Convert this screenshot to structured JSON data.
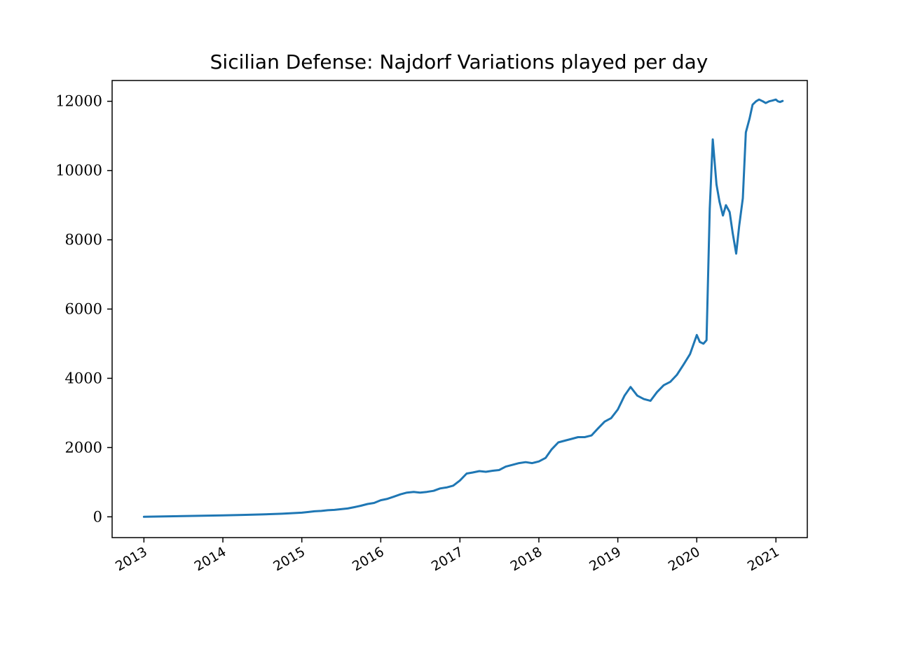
{
  "chart_data": {
    "type": "line",
    "title": "Sicilian Defense: Najdorf Variations played per day",
    "xlabel": "",
    "ylabel": "",
    "x_ticks": [
      "2013",
      "2014",
      "2015",
      "2016",
      "2017",
      "2018",
      "2019",
      "2020",
      "2021"
    ],
    "y_ticks": [
      "0",
      "2000",
      "4000",
      "6000",
      "8000",
      "10000",
      "12000"
    ],
    "xlim": [
      "2012-08-07",
      "2021-05-26"
    ],
    "ylim": [
      -600,
      12600
    ],
    "grid": false,
    "legend": "none",
    "line_color": "#1f77b4",
    "series": [
      {
        "x": [
          "2013-01-01",
          "2013-04-01",
          "2013-07-01",
          "2013-10-01",
          "2014-01-01",
          "2014-04-01",
          "2014-07-01",
          "2014-10-01",
          "2015-01-01",
          "2015-02-01",
          "2015-03-01",
          "2015-04-01",
          "2015-05-01",
          "2015-06-01",
          "2015-07-01",
          "2015-08-01",
          "2015-09-01",
          "2015-10-01",
          "2015-11-01",
          "2015-12-01",
          "2016-01-01",
          "2016-02-01",
          "2016-03-01",
          "2016-04-01",
          "2016-05-01",
          "2016-06-01",
          "2016-07-01",
          "2016-08-01",
          "2016-09-01",
          "2016-10-01",
          "2016-11-01",
          "2016-12-01",
          "2017-01-01",
          "2017-02-01",
          "2017-03-01",
          "2017-04-01",
          "2017-05-01",
          "2017-06-01",
          "2017-07-01",
          "2017-08-01",
          "2017-09-01",
          "2017-10-01",
          "2017-11-01",
          "2017-12-01",
          "2018-01-01",
          "2018-02-01",
          "2018-03-01",
          "2018-04-01",
          "2018-05-01",
          "2018-06-01",
          "2018-07-01",
          "2018-08-01",
          "2018-09-01",
          "2018-10-01",
          "2018-11-01",
          "2018-12-01",
          "2019-01-01",
          "2019-02-01",
          "2019-03-01",
          "2019-04-01",
          "2019-05-01",
          "2019-06-01",
          "2019-07-01",
          "2019-08-01",
          "2019-09-01",
          "2019-10-01",
          "2019-11-01",
          "2019-12-01",
          "2020-01-01",
          "2020-01-15",
          "2020-02-01",
          "2020-02-15",
          "2020-03-01",
          "2020-03-15",
          "2020-04-01",
          "2020-04-15",
          "2020-05-01",
          "2020-05-15",
          "2020-06-01",
          "2020-06-15",
          "2020-07-01",
          "2020-07-15",
          "2020-08-01",
          "2020-08-15",
          "2020-09-01",
          "2020-09-15",
          "2020-10-01",
          "2020-10-15",
          "2020-11-01",
          "2020-11-15",
          "2020-12-01",
          "2020-12-15",
          "2021-01-01",
          "2021-01-10",
          "2021-01-20",
          "2021-02-01"
        ],
        "y": [
          0,
          10,
          20,
          30,
          40,
          55,
          70,
          90,
          120,
          140,
          160,
          170,
          190,
          200,
          220,
          240,
          280,
          320,
          370,
          400,
          480,
          520,
          580,
          650,
          700,
          720,
          700,
          720,
          750,
          820,
          850,
          900,
          1050,
          1250,
          1280,
          1320,
          1300,
          1330,
          1350,
          1450,
          1500,
          1550,
          1580,
          1550,
          1600,
          1700,
          1950,
          2150,
          2200,
          2250,
          2300,
          2300,
          2350,
          2550,
          2750,
          2850,
          3100,
          3500,
          3750,
          3500,
          3400,
          3350,
          3600,
          3800,
          3900,
          4100,
          4400,
          4700,
          5250,
          5050,
          5000,
          5100,
          8900,
          10900,
          9600,
          9100,
          8700,
          9000,
          8800,
          8200,
          7600,
          8400,
          9200,
          11100,
          11500,
          11900,
          12000,
          12050,
          12000,
          11950,
          12000,
          12020,
          12050,
          12000,
          11980,
          12010
        ],
        "values_note": ""
      }
    ]
  }
}
